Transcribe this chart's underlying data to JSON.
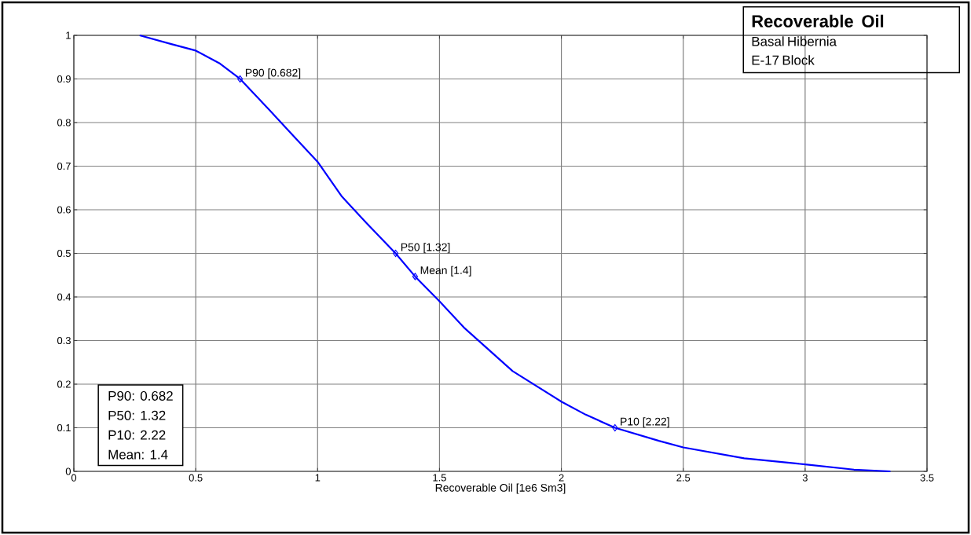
{
  "chart_data": {
    "type": "line",
    "title": "Recoverable Oil",
    "subtitle": "Basal Hibernia",
    "xlabel": "Recoverable Oil [1e6 Sm3]",
    "xlim": [
      0,
      3.5
    ],
    "ylim": [
      0,
      1
    ],
    "xticks": [
      0,
      0.5,
      1,
      1.5,
      2,
      2.5,
      3,
      3.5
    ],
    "yticks": [
      0,
      0.1,
      0.2,
      0.3,
      0.4,
      0.5,
      0.6,
      0.7,
      0.8,
      0.9,
      1
    ],
    "grid": true,
    "series": [
      {
        "color": "#0000ff",
        "x": [
          0.27,
          0.4,
          0.5,
          0.6,
          0.682,
          0.8,
          0.9,
          1.0,
          1.1,
          1.2,
          1.32,
          1.4,
          1.5,
          1.6,
          1.7,
          1.8,
          1.9,
          2.0,
          2.1,
          2.22,
          2.4,
          2.5,
          2.75,
          3.0,
          3.2,
          3.35
        ],
        "values": [
          1.0,
          0.98,
          0.965,
          0.935,
          0.9,
          0.83,
          0.77,
          0.71,
          0.63,
          0.57,
          0.5,
          0.447,
          0.39,
          0.33,
          0.28,
          0.23,
          0.195,
          0.16,
          0.13,
          0.1,
          0.07,
          0.055,
          0.03,
          0.016,
          0.004,
          0.0
        ]
      },
      {
        "type": "scatter",
        "marker": "diamond",
        "color": "#0000ff",
        "x": [
          0.682,
          1.32,
          1.4,
          2.22
        ],
        "values": [
          0.9,
          0.5,
          0.447,
          0.1
        ]
      }
    ],
    "annotations": [
      "E-17 Block",
      {
        "text": "P90 [0.682]",
        "x": 0.682,
        "y": 0.9
      },
      {
        "text": "P50 [1.32]",
        "x": 1.32,
        "y": 0.5
      },
      {
        "text": "Mean [1.4]",
        "x": 1.4,
        "y": 0.447
      },
      {
        "text": "P10 [2.22]",
        "x": 2.22,
        "y": 0.1
      },
      "P90: 0.682",
      "P50: 1.32",
      "P10: 2.22",
      "Mean: 1.4"
    ]
  }
}
